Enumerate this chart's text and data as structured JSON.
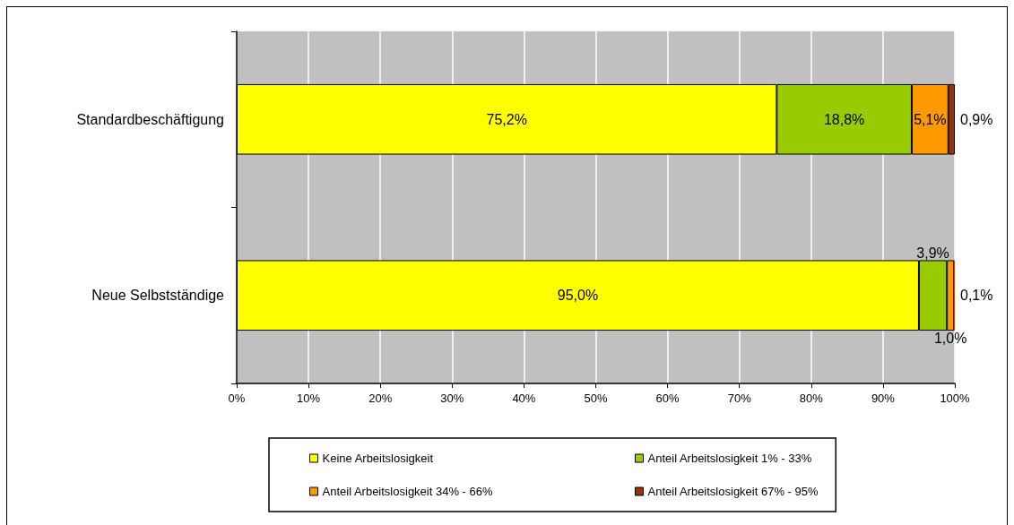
{
  "chart_data": {
    "type": "bar",
    "orientation": "horizontal",
    "stacked": true,
    "categories": [
      "Standardbeschäftigung",
      "Neue Selbstständige"
    ],
    "series": [
      {
        "name": "Keine Arbeitslosigkeit",
        "color": "#ffff00",
        "values": [
          75.2,
          95.0
        ],
        "value_labels": [
          "75,2%",
          "95,0%"
        ]
      },
      {
        "name": "Anteil Arbeitslosigkeit 1% - 33%",
        "color": "#99cc00",
        "values": [
          18.8,
          3.9
        ],
        "value_labels": [
          "18,8%",
          "3,9%"
        ]
      },
      {
        "name": "Anteil Arbeitslosigkeit 34% - 66%",
        "color": "#ff9900",
        "values": [
          5.1,
          1.0
        ],
        "value_labels": [
          "5,1%",
          "1,0%"
        ]
      },
      {
        "name": "Anteil Arbeitslosigkeit 67% - 95%",
        "color": "#993300",
        "values": [
          0.9,
          0.1
        ],
        "value_labels": [
          "0,9%",
          "0,1%"
        ]
      }
    ],
    "xlim": [
      0,
      100
    ],
    "xticks": [
      {
        "value": 0,
        "label": "0%"
      },
      {
        "value": 10,
        "label": "10%"
      },
      {
        "value": 20,
        "label": "20%"
      },
      {
        "value": 30,
        "label": "30%"
      },
      {
        "value": 40,
        "label": "40%"
      },
      {
        "value": 50,
        "label": "50%"
      },
      {
        "value": 60,
        "label": "60%"
      },
      {
        "value": 70,
        "label": "70%"
      },
      {
        "value": 80,
        "label": "80%"
      },
      {
        "value": 90,
        "label": "90%"
      },
      {
        "value": 100,
        "label": "100%"
      }
    ],
    "grid": "x",
    "legend": "bottom"
  }
}
